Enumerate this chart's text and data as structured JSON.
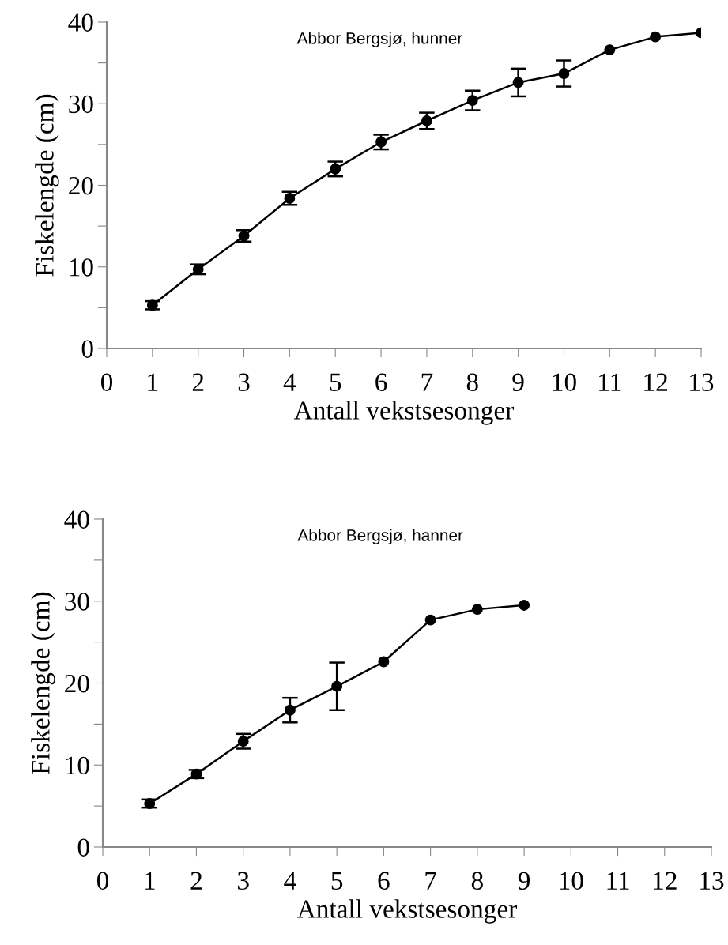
{
  "chart_data": [
    {
      "type": "line",
      "title": "Abbor Bergsjø, hunner",
      "xlabel": "Antall vekstsesonger",
      "ylabel": "Fiskelengde (cm)",
      "x": [
        1,
        2,
        3,
        4,
        5,
        6,
        7,
        8,
        9,
        10,
        11,
        12,
        13
      ],
      "series": [
        {
          "color": "#000000",
          "values": [
            5.3,
            9.7,
            13.8,
            18.4,
            22.0,
            25.3,
            27.9,
            30.4,
            32.6,
            33.7,
            36.6,
            38.2,
            38.7
          ],
          "errors": [
            0.5,
            0.6,
            0.7,
            0.8,
            0.9,
            0.9,
            1.0,
            1.2,
            1.7,
            1.6,
            null,
            null,
            null
          ]
        }
      ],
      "xlim": [
        0,
        13
      ],
      "xticks": [
        0,
        1,
        2,
        3,
        4,
        5,
        6,
        7,
        8,
        9,
        10,
        11,
        12,
        13
      ],
      "ylim": [
        0,
        40
      ],
      "yticks": [
        0,
        {
          "value": 5,
          "label": null
        },
        10,
        {
          "value": 15,
          "label": null
        },
        20,
        {
          "value": 25,
          "label": null
        },
        30,
        {
          "value": 35,
          "label": null
        },
        40
      ],
      "marker": "circle",
      "line_style": "solid",
      "grid": false,
      "legend": false
    },
    {
      "type": "line",
      "title": "Abbor Bergsjø, hanner",
      "xlabel": "Antall vekstsesonger",
      "ylabel": "Fiskelengde (cm)",
      "x": [
        1,
        2,
        3,
        4,
        5,
        6,
        7,
        8,
        9
      ],
      "series": [
        {
          "color": "#000000",
          "values": [
            5.3,
            8.9,
            12.9,
            16.7,
            19.6,
            22.6,
            27.7,
            29.0,
            29.5
          ],
          "errors": [
            0.5,
            0.5,
            0.9,
            1.5,
            2.9,
            null,
            null,
            null,
            null
          ]
        }
      ],
      "xlim": [
        0,
        13
      ],
      "xticks": [
        0,
        1,
        2,
        3,
        4,
        5,
        6,
        7,
        8,
        9,
        10,
        11,
        12,
        13
      ],
      "ylim": [
        0,
        40
      ],
      "yticks": [
        0,
        {
          "value": 5,
          "label": null
        },
        10,
        {
          "value": 15,
          "label": null
        },
        20,
        {
          "value": 25,
          "label": null
        },
        30,
        {
          "value": 35,
          "label": null
        },
        40
      ],
      "marker": "circle",
      "line_style": "solid",
      "grid": false,
      "legend": false
    }
  ]
}
